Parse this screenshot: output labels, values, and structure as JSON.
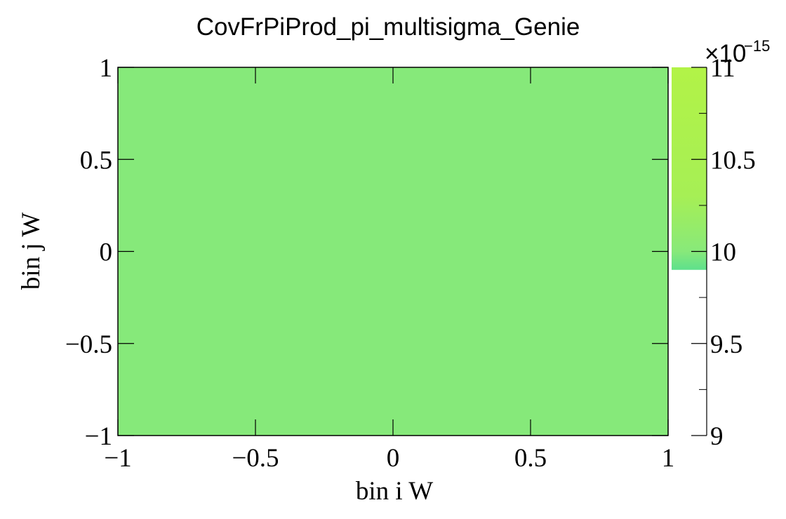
{
  "chart_data": {
    "type": "heatmap",
    "title": "CovFrPiProd_pi_multisigma_Genie",
    "xlabel": "bin i W",
    "ylabel": "bin j W",
    "xlim": [
      -1,
      1
    ],
    "ylim": [
      -1,
      1
    ],
    "x_ticks": [
      -1,
      -0.5,
      0,
      0.5,
      1
    ],
    "x_tick_labels": [
      "−1",
      "−0.5",
      "0",
      "0.5",
      "1"
    ],
    "y_ticks": [
      -1,
      -0.5,
      0,
      0.5,
      1
    ],
    "y_tick_labels": [
      "−1",
      "−0.5",
      "0",
      "0.5",
      "1"
    ],
    "cells": [
      {
        "x_range": [
          -1,
          1
        ],
        "y_range": [
          -1,
          1
        ],
        "value": 10.0,
        "color": "#86e97a"
      }
    ],
    "colorbar": {
      "range": [
        9,
        11
      ],
      "ticks": [
        9,
        9.5,
        10,
        10.5,
        11
      ],
      "tick_labels": [
        "9",
        "9.5",
        "10",
        "10.5",
        "11"
      ],
      "multiplier_base": "×10",
      "multiplier_exponent": "−15",
      "filled_range": [
        9.9,
        11
      ],
      "gradient": [
        {
          "value": 9.9,
          "color": "#5ee08c"
        },
        {
          "value": 10.0,
          "color": "#88e97a"
        },
        {
          "value": 10.3,
          "color": "#a6ef55"
        },
        {
          "value": 11.0,
          "color": "#b2f347"
        }
      ]
    },
    "grid": false,
    "legend": "none"
  }
}
